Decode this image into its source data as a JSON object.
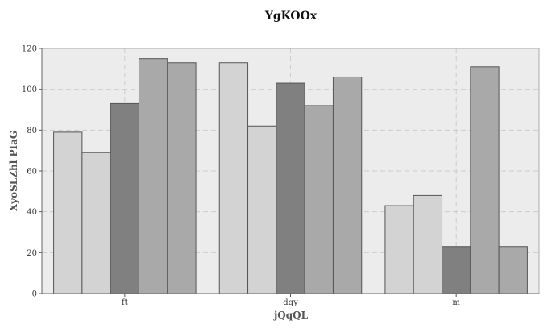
{
  "chart_data": {
    "type": "bar",
    "title": "YgKOOx",
    "xlabel": "jQqQL",
    "ylabel": "XyoSLZhl PIaG",
    "categories": [
      "ft",
      "dqy",
      "m"
    ],
    "series": [
      {
        "values": [
          79,
          113,
          43
        ],
        "color": "#d3d3d3"
      },
      {
        "values": [
          69,
          82,
          48
        ],
        "color": "#d3d3d3"
      },
      {
        "values": [
          93,
          103,
          23
        ],
        "color": "#808080"
      },
      {
        "values": [
          115,
          92,
          111
        ],
        "color": "#a9a9a9"
      },
      {
        "values": [
          113,
          106,
          23
        ],
        "color": "#a9a9a9"
      }
    ],
    "ylim": [
      0,
      120
    ],
    "yticks": [
      0,
      20,
      40,
      60,
      80,
      100,
      120
    ],
    "grid": true,
    "plot_background": "#ececec",
    "bar_edge_color": "#555555"
  }
}
